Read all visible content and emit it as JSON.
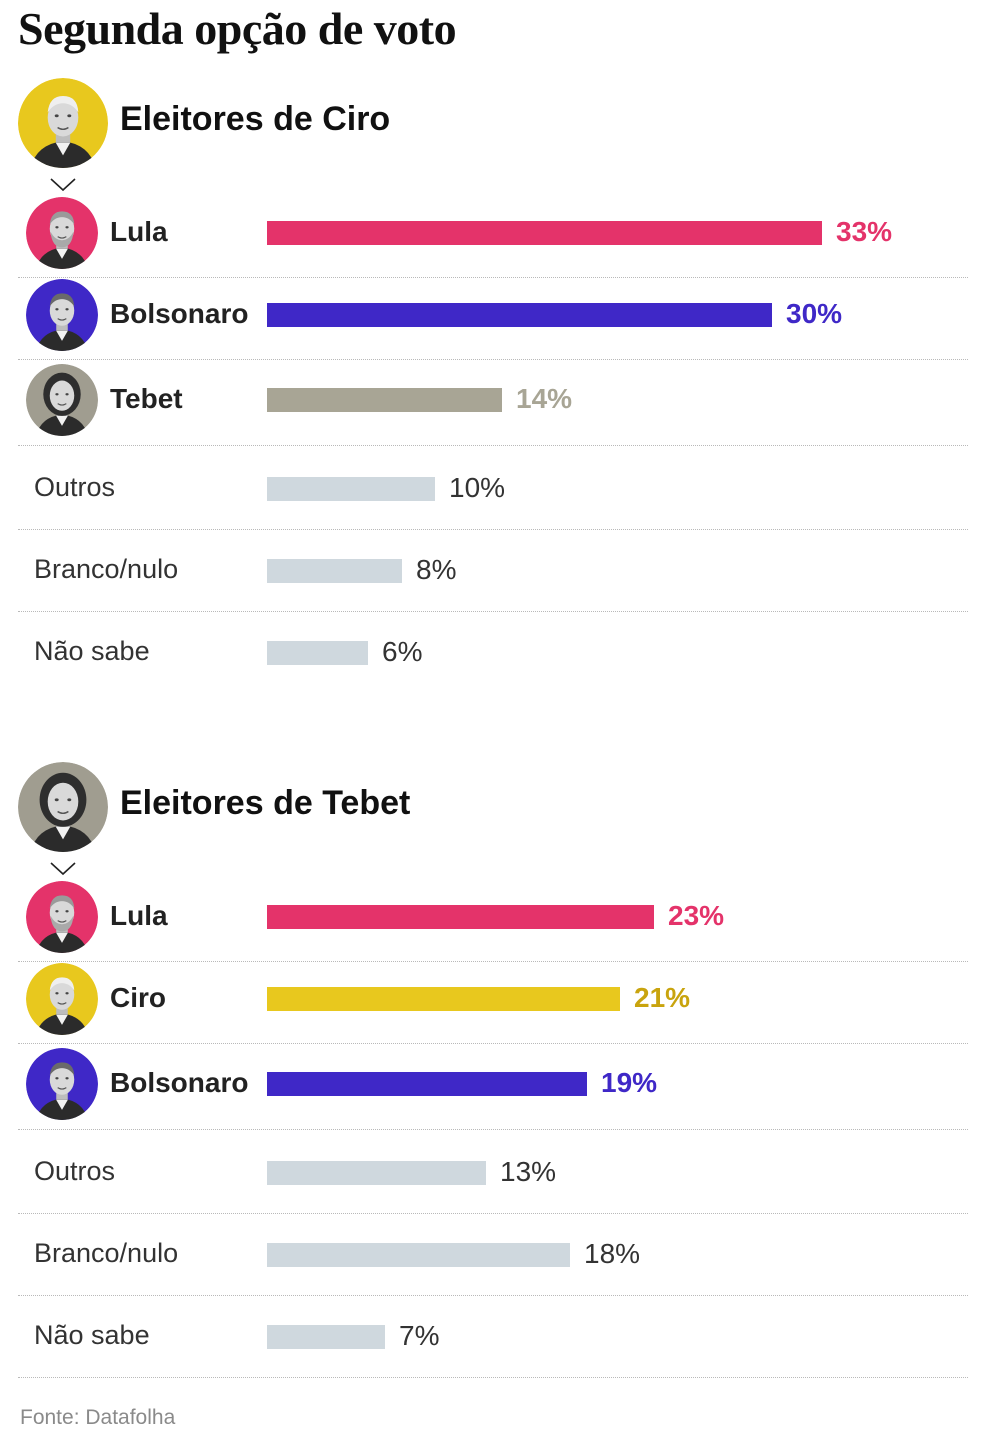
{
  "title": "Segunda opção de voto",
  "source": "Fonte: Datafolha",
  "colors": {
    "lula": "#e4336a",
    "bolsonaro": "#3f28c7",
    "tebet": "#a8a595",
    "tebet_text": "#a8a595",
    "ciro": "#e8c81e",
    "ciro_text": "#c9a40e",
    "other": "#cfd8de",
    "other_text": "#333333"
  },
  "chart_data": [
    {
      "type": "bar",
      "orientation": "horizontal",
      "title": "Eleitores de Ciro",
      "avatar_icon": "ciro-portrait-icon",
      "categories": [
        "Lula",
        "Bolsonaro",
        "Tebet",
        "Outros",
        "Branco/nulo",
        "Não sabe"
      ],
      "values": [
        33,
        30,
        14,
        10,
        8,
        6
      ],
      "value_labels": [
        "33%",
        "30%",
        "14%",
        "10%",
        "8%",
        "6%"
      ],
      "row_kinds": [
        "lula",
        "bolsonaro",
        "tebet",
        "other",
        "other",
        "other"
      ],
      "unit": "%",
      "xlim": [
        0,
        35
      ]
    },
    {
      "type": "bar",
      "orientation": "horizontal",
      "title": "Eleitores de Tebet",
      "avatar_icon": "tebet-portrait-icon",
      "categories": [
        "Lula",
        "Ciro",
        "Bolsonaro",
        "Outros",
        "Branco/nulo",
        "Não sabe"
      ],
      "values": [
        23,
        21,
        19,
        13,
        18,
        7
      ],
      "value_labels": [
        "23%",
        "21%",
        "19%",
        "13%",
        "18%",
        "7%"
      ],
      "row_kinds": [
        "lula",
        "ciro",
        "bolsonaro",
        "other",
        "other",
        "other"
      ],
      "unit": "%",
      "xlim": [
        0,
        35
      ]
    }
  ]
}
